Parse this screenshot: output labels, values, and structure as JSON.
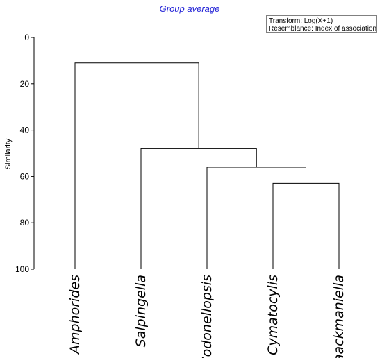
{
  "chart_data": {
    "type": "dendrogram",
    "title": "Group average",
    "ylabel": "Similarity",
    "yticks": [
      0,
      20,
      40,
      60,
      80,
      100
    ],
    "ylim": [
      0,
      100
    ],
    "legend": {
      "position": "top-right",
      "lines": [
        "Transform: Log(X+1)",
        "Resemblance: Index of association"
      ]
    },
    "leaves": [
      "Amphorides",
      "Salpingella",
      "Codonellopsis",
      "Cymatocylis",
      "Laackmaniella"
    ],
    "merges": [
      {
        "left": "Cymatocylis",
        "right": "Laackmaniella",
        "similarity": 63
      },
      {
        "left": "Codonellopsis",
        "right": "Cymatocylis+Laackmaniella",
        "similarity": 56
      },
      {
        "left": "Salpingella",
        "right": "Codonellopsis+Cymatocylis+Laackmaniella",
        "similarity": 48
      },
      {
        "left": "Amphorides",
        "right": "Salpingella+Codonellopsis+Cymatocylis+Laackmaniella",
        "similarity": 11
      }
    ],
    "line_color": "#000000",
    "title_color": "#1f1fd6"
  }
}
